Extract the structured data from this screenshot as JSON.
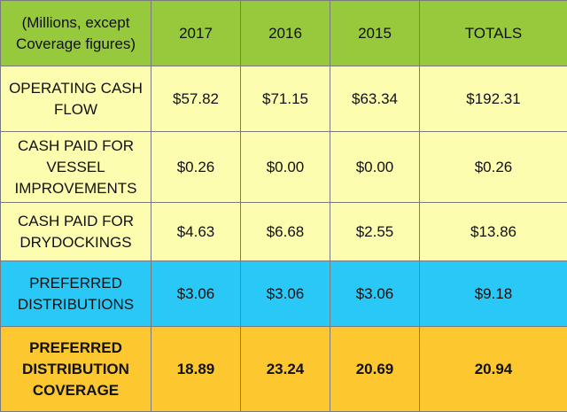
{
  "colors": {
    "header": "#97c93c",
    "cash_rows": "#fdfdb0",
    "preferred_distributions": "#29c8f7",
    "coverage": "#fcc72f"
  },
  "header": {
    "label": "(Millions, except Coverage figures)",
    "columns": [
      "2017",
      "2016",
      "2015",
      "TOTALS"
    ]
  },
  "rows": [
    {
      "label": "OPERATING CASH FLOW",
      "values": [
        "$57.82",
        "$71.15",
        "$63.34",
        "$192.31"
      ]
    },
    {
      "label": "CASH PAID FOR VESSEL IMPROVEMENTS",
      "values": [
        "$0.26",
        "$0.00",
        "$0.00",
        "$0.26"
      ]
    },
    {
      "label": "CASH PAID FOR DRYDOCKINGS",
      "values": [
        "$4.63",
        "$6.68",
        "$2.55",
        "$13.86"
      ]
    },
    {
      "label": "PREFERRED DISTRIBUTIONS",
      "values": [
        "$3.06",
        "$3.06",
        "$3.06",
        "$9.18"
      ]
    },
    {
      "label": "PREFERRED DISTRIBUTION COVERAGE",
      "values": [
        "18.89",
        "23.24",
        "20.69",
        "20.94"
      ]
    }
  ]
}
